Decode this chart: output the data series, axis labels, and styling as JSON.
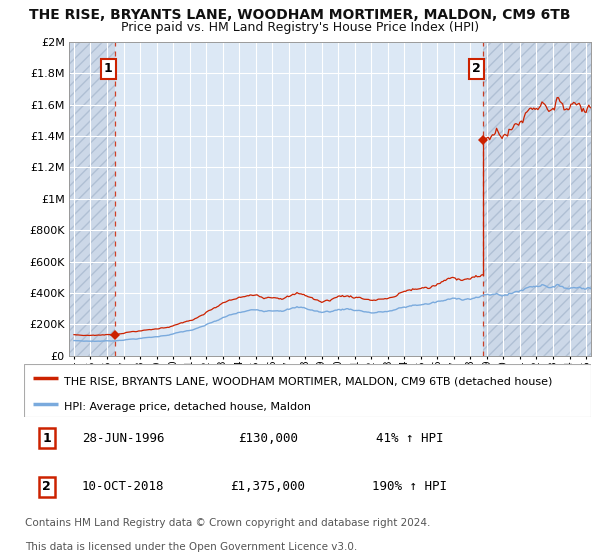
{
  "title": "THE RISE, BRYANTS LANE, WOODHAM MORTIMER, MALDON, CM9 6TB",
  "subtitle": "Price paid vs. HM Land Registry's House Price Index (HPI)",
  "legend_line1": "THE RISE, BRYANTS LANE, WOODHAM MORTIMER, MALDON, CM9 6TB (detached house)",
  "legend_line2": "HPI: Average price, detached house, Maldon",
  "ann1_date": "28-JUN-1996",
  "ann1_price": "£130,000",
  "ann1_hpi": "41% ↑ HPI",
  "ann1_x": 1996.5,
  "ann1_y": 130000,
  "ann2_date": "10-OCT-2018",
  "ann2_price": "£1,375,000",
  "ann2_hpi": "190% ↑ HPI",
  "ann2_x": 2018.78,
  "ann2_y": 1375000,
  "footnote1": "Contains HM Land Registry data © Crown copyright and database right 2024.",
  "footnote2": "This data is licensed under the Open Government Licence v3.0.",
  "ylim": [
    0,
    2000000
  ],
  "yticks": [
    0,
    200000,
    400000,
    600000,
    800000,
    1000000,
    1200000,
    1400000,
    1600000,
    1800000,
    2000000
  ],
  "ytick_labels": [
    "£0",
    "£200K",
    "£400K",
    "£600K",
    "£800K",
    "£1M",
    "£1.2M",
    "£1.4M",
    "£1.6M",
    "£1.8M",
    "£2M"
  ],
  "xlim_min": 1993.7,
  "xlim_max": 2025.3,
  "hpi_color": "#7aaadd",
  "price_color": "#cc2200",
  "bg_color": "#dce8f5",
  "hatch_bg_color": "#ccd8e8",
  "grid_color": "#ffffff",
  "title_fontsize": 10,
  "subtitle_fontsize": 9,
  "tick_fontsize": 8,
  "ann_fontsize": 9,
  "footnote_fontsize": 7.5
}
